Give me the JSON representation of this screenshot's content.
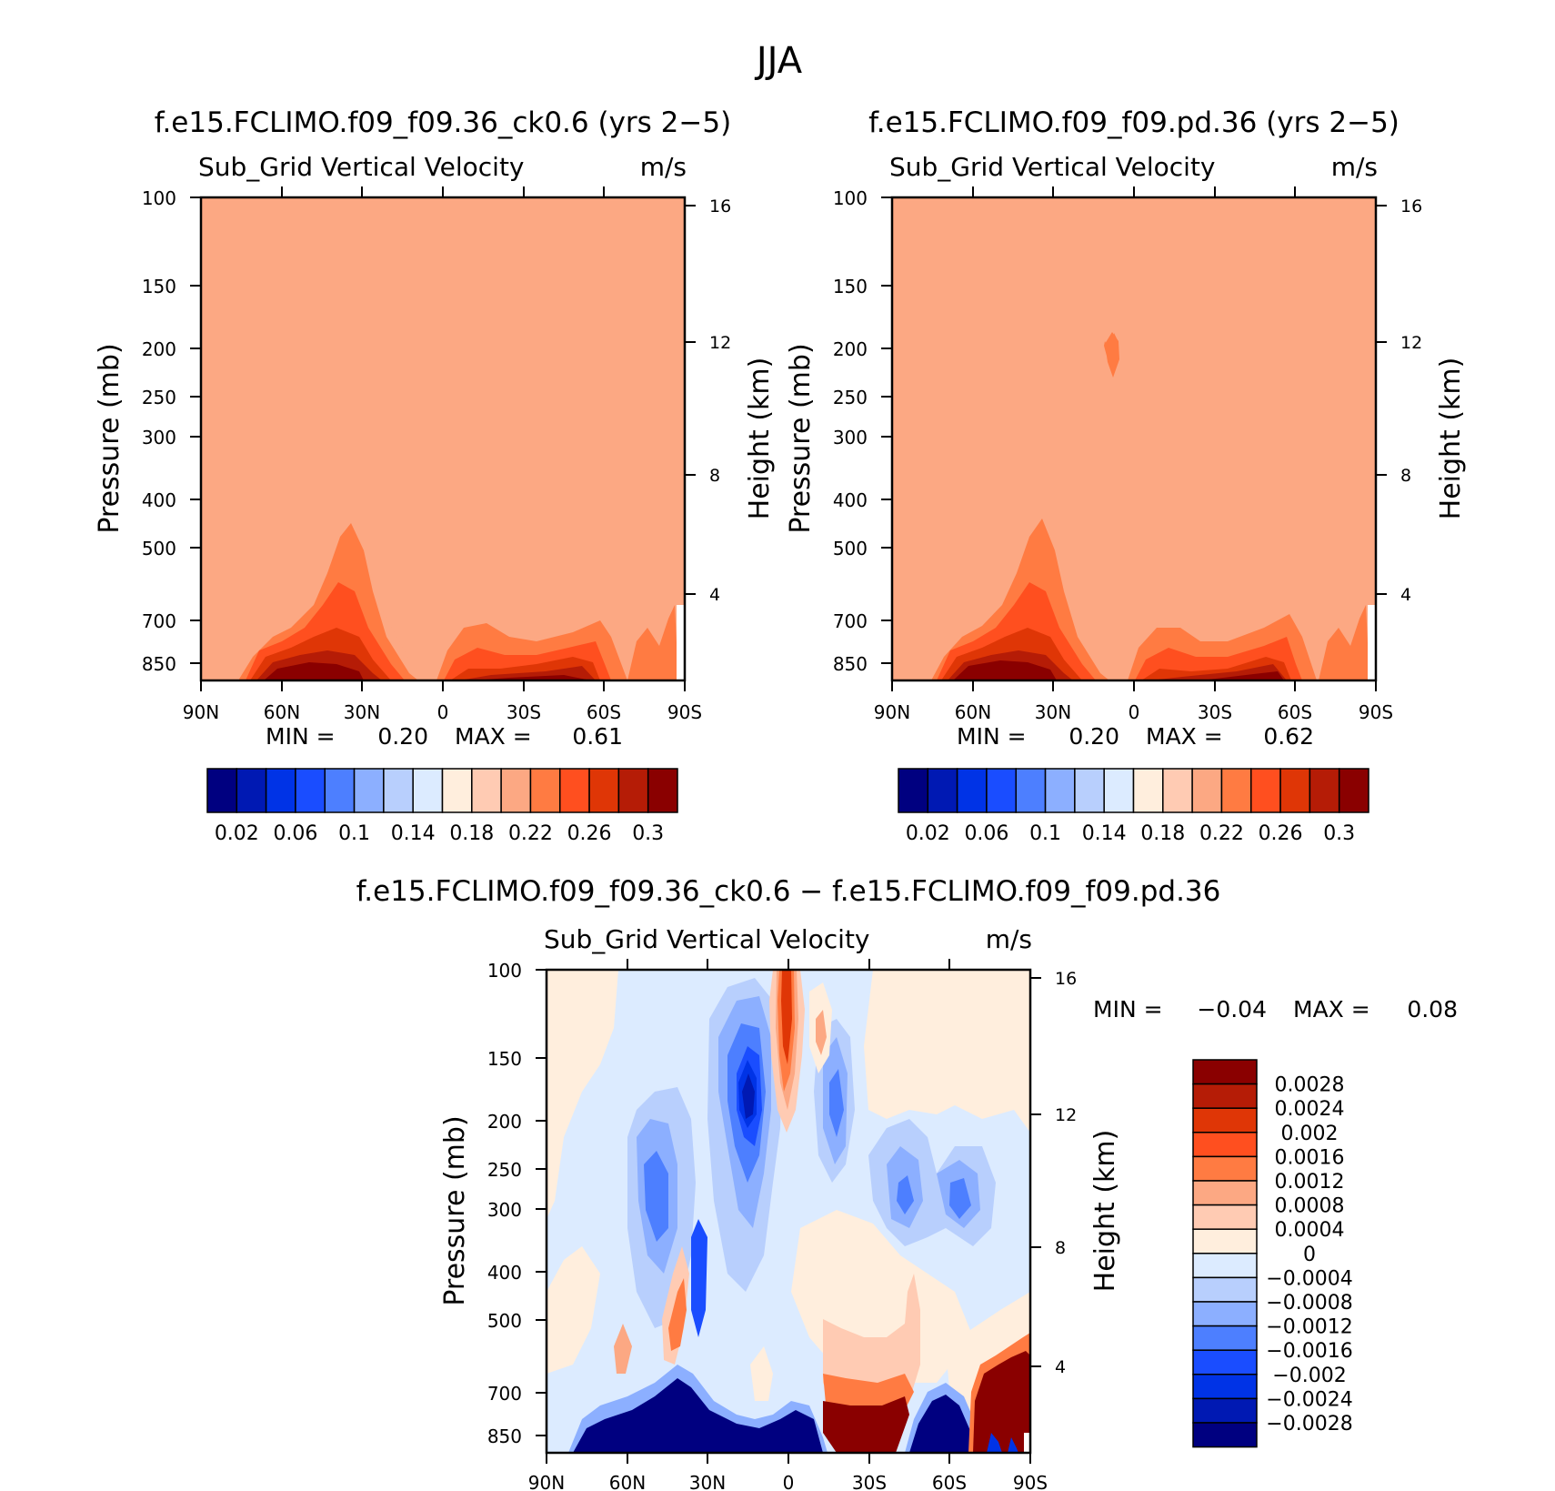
{
  "figure": {
    "title": "JJA",
    "colors": {
      "abs_palette": [
        "#000080",
        "#0019b3",
        "#0033e6",
        "#1a4dff",
        "#4d7fff",
        "#8cafff",
        "#b8cffd",
        "#dcebff",
        "#ffeedd",
        "#ffcbb3",
        "#fca883",
        "#ff7b42",
        "#ff4f1f",
        "#df3606",
        "#b51c06",
        "#8a0000"
      ],
      "diff_palette": [
        "#000080",
        "#0019b3",
        "#0033e6",
        "#1a4dff",
        "#4d7fff",
        "#8cafff",
        "#b8cffd",
        "#dcebff",
        "#ffeedd",
        "#ffcbb3",
        "#fca883",
        "#ff7b42",
        "#ff4f1f",
        "#df3606",
        "#b51c06",
        "#8a0000"
      ]
    }
  },
  "chart_data": [
    {
      "id": "panel-ck06",
      "type": "heatmap",
      "title": "f.e15.FCLIMO.f09_f09.36_ck0.6 (yrs 2−5)",
      "variable": "Sub_Grid Vertical Velocity",
      "units": "m/s",
      "ylabel": "Pressure (mb)",
      "y2label": "Height (km)",
      "xticks": [
        "90N",
        "60N",
        "30N",
        "0",
        "30S",
        "60S",
        "90S"
      ],
      "yticks": [
        "100",
        "150",
        "200",
        "250",
        "300",
        "400",
        "500",
        "700",
        "850"
      ],
      "y2ticks": [
        "16",
        "12",
        "8",
        "4"
      ],
      "min_text": "MIN =",
      "min_value": "0.20",
      "max_text": "MAX =",
      "max_value": "0.61",
      "colorbar_labels": [
        "0.02",
        "0.06",
        "0.1",
        "0.14",
        "0.18",
        "0.22",
        "0.26",
        "0.3"
      ],
      "background_value": 0.22
    },
    {
      "id": "panel-pd",
      "type": "heatmap",
      "title": "f.e15.FCLIMO.f09_f09.pd.36 (yrs 2−5)",
      "variable": "Sub_Grid Vertical Velocity",
      "units": "m/s",
      "ylabel": "Pressure (mb)",
      "y2label": "Height (km)",
      "xticks": [
        "90N",
        "60N",
        "30N",
        "0",
        "30S",
        "60S",
        "90S"
      ],
      "yticks": [
        "100",
        "150",
        "200",
        "250",
        "300",
        "400",
        "500",
        "700",
        "850"
      ],
      "y2ticks": [
        "16",
        "12",
        "8",
        "4"
      ],
      "min_text": "MIN =",
      "min_value": "0.20",
      "max_text": "MAX =",
      "max_value": "0.62",
      "colorbar_labels": [
        "0.02",
        "0.06",
        "0.1",
        "0.14",
        "0.18",
        "0.22",
        "0.26",
        "0.3"
      ],
      "background_value": 0.22
    },
    {
      "id": "panel-diff",
      "type": "heatmap",
      "title": "f.e15.FCLIMO.f09_f09.36_ck0.6 − f.e15.FCLIMO.f09_f09.pd.36",
      "variable": "Sub_Grid Vertical Velocity",
      "units": "m/s",
      "ylabel": "Pressure (mb)",
      "y2label": "Height (km)",
      "xticks": [
        "90N",
        "60N",
        "30N",
        "0",
        "30S",
        "60S",
        "90S"
      ],
      "yticks": [
        "100",
        "150",
        "200",
        "250",
        "300",
        "400",
        "500",
        "700",
        "850"
      ],
      "y2ticks": [
        "16",
        "12",
        "8",
        "4"
      ],
      "min_text": "MIN =",
      "min_value": "−0.04",
      "max_text": "MAX =",
      "max_value": "0.08",
      "colorbar_labels": [
        "0.0028",
        "0.0024",
        "0.002",
        "0.0016",
        "0.0012",
        "0.0008",
        "0.0004",
        "0",
        "−0.0004",
        "−0.0008",
        "−0.0012",
        "−0.0016",
        "−0.002",
        "−0.0024",
        "−0.0028"
      ]
    }
  ]
}
